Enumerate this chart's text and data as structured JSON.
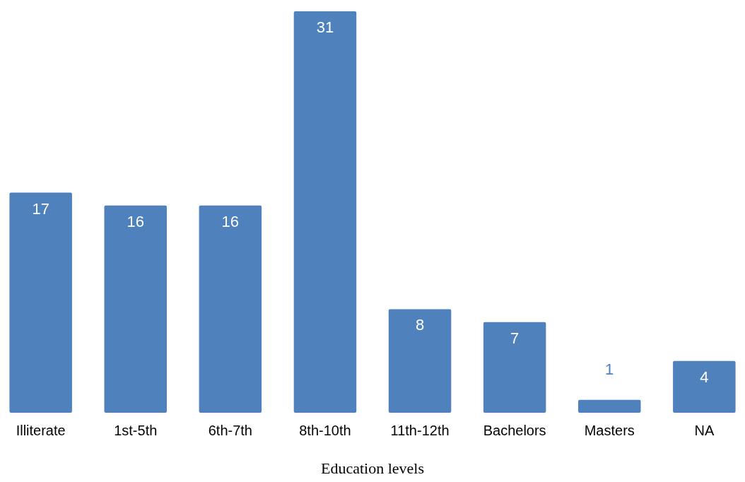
{
  "chart_data": {
    "type": "bar",
    "xlabel": "Education levels",
    "categories": [
      "Illiterate",
      "1st-5th",
      "6th-7th",
      "8th-10th",
      "11th-12th",
      "Bachelors",
      "Masters",
      "NA"
    ],
    "values": [
      17,
      16,
      16,
      31,
      8,
      7,
      1,
      4
    ],
    "color": "#4f81bd",
    "data_labels": true
  }
}
